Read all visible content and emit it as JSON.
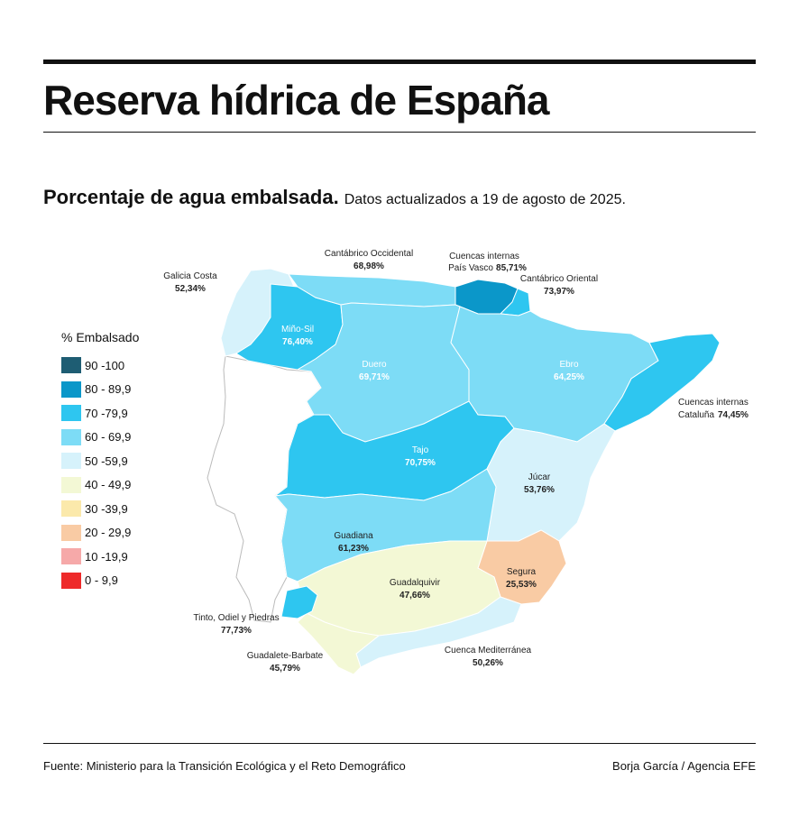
{
  "header": {
    "title": "Reserva hídrica de España",
    "subtitle_bold": "Porcentaje de agua embalsada.",
    "subtitle_light": "Datos actualizados a 19 de agosto de 2025."
  },
  "legend": {
    "title": "% Embalsado",
    "items": [
      {
        "label": "90 -100",
        "color": "#1e5d73"
      },
      {
        "label": "80 - 89,9",
        "color": "#0b97c9"
      },
      {
        "label": "70 -79,9",
        "color": "#2ec6f0"
      },
      {
        "label": "60 - 69,9",
        "color": "#7ddcf6"
      },
      {
        "label": "50 -59,9",
        "color": "#d6f2fb"
      },
      {
        "label": "40 - 49,9",
        "color": "#f3f8d5"
      },
      {
        "label": "30 -39,9",
        "color": "#fbe9ab"
      },
      {
        "label": "20 - 29,9",
        "color": "#f9cba4"
      },
      {
        "label": "10 -19,9",
        "color": "#f6a9a9"
      },
      {
        "label": "0 - 9,9",
        "color": "#ee2a2a"
      }
    ]
  },
  "basins": {
    "galicia_costa": {
      "name": "Galicia Costa",
      "value": "52,34%"
    },
    "cantabrico_occidental": {
      "name": "Cantábrico Occidental",
      "value": "68,98%"
    },
    "pais_vasco": {
      "name_line1": "Cuencas internas",
      "name_line2": "País Vasco",
      "value": "85,71%"
    },
    "cantabrico_oriental": {
      "name": "Cantábrico Oriental",
      "value": "73,97%"
    },
    "mino_sil": {
      "name": "Miño-Sil",
      "value": "76,40%"
    },
    "duero": {
      "name": "Duero",
      "value": "69,71%"
    },
    "ebro": {
      "name": "Ebro",
      "value": "64,25%"
    },
    "cataluna": {
      "name_line1": "Cuencas internas",
      "name_line2": "Cataluña",
      "value": "74,45%"
    },
    "tajo": {
      "name": "Tajo",
      "value": "70,75%"
    },
    "jucar": {
      "name": "Júcar",
      "value": "53,76%"
    },
    "guadiana": {
      "name": "Guadiana",
      "value": "61,23%"
    },
    "guadalquivir": {
      "name": "Guadalquivir",
      "value": "47,66%"
    },
    "segura": {
      "name": "Segura",
      "value": "25,53%"
    },
    "tinto_odiel": {
      "name": "Tinto, Odiel y Piedras",
      "value": "77,73%"
    },
    "guadalete": {
      "name": "Guadalete-Barbate",
      "value": "45,79%"
    },
    "mediterranea": {
      "name": "Cuenca Mediterránea",
      "value": "50,26%"
    }
  },
  "footer": {
    "source": "Fuente: Ministerio para la Transición Ecológica y el Reto Demográfico",
    "credit": "Borja García / Agencia EFE"
  }
}
